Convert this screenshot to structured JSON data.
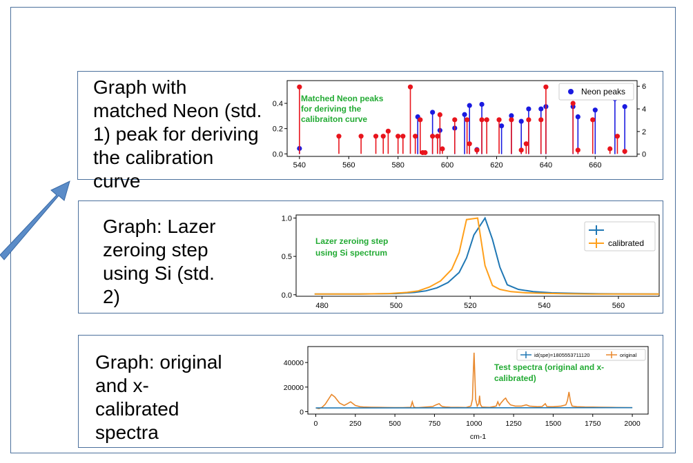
{
  "panels": [
    {
      "label": "Graph with\nmatched Neon (std.\n1) peak for deriving\nthe calibration\ncurve"
    },
    {
      "label": "Graph: Lazer\nzeroing step\nusing Si (std.\n2)"
    },
    {
      "label": "Graph: original\nand x-\ncalibrated\nspectra"
    }
  ],
  "colors": {
    "frame": "#4a6f9b",
    "arrow": "#5b8cc8",
    "annotation": "#22aa33",
    "red": "#e8141c",
    "blue": "#1a1ae0",
    "tab_blue": "#1f77b4",
    "tab_orange": "#ff9f1a",
    "tab_orange2": "#e8872a"
  },
  "chart_data": [
    {
      "type": "scatter",
      "annotation": "Matched Neon peaks\nfor deriving the\ncalibraiton curve",
      "legend": [
        "Neon peaks"
      ],
      "legend_position": "top-right",
      "xlim": [
        535,
        677
      ],
      "ylim_left": [
        -0.02,
        0.58
      ],
      "ylim_right": [
        -0.2,
        6.5
      ],
      "x_ticks": [
        540,
        560,
        580,
        600,
        620,
        640,
        660
      ],
      "y_ticks_left": [
        "0.0",
        "0.2",
        "0.4"
      ],
      "y_ticks_right": [
        "0",
        "2",
        "4",
        "6"
      ],
      "series": [
        {
          "name": "Neon peaks",
          "axis": "right",
          "color": "blue",
          "points": [
            [
              540,
              0.5
            ],
            [
              588,
              3.3
            ],
            [
              594,
              3.7
            ],
            [
              597,
              2.1
            ],
            [
              603,
              2.3
            ],
            [
              607,
              3.5
            ],
            [
              609,
              4.3
            ],
            [
              612,
              0.4
            ],
            [
              614,
              4.4
            ],
            [
              622,
              2.5
            ],
            [
              626,
              3.4
            ],
            [
              630,
              2.9
            ],
            [
              633,
              4.0
            ],
            [
              638,
              4.0
            ],
            [
              640,
              4.2
            ],
            [
              651,
              4.2
            ],
            [
              653,
              3.3
            ],
            [
              660,
              3.9
            ],
            [
              668,
              4.9
            ],
            [
              672,
              4.2
            ]
          ]
        },
        {
          "name": "",
          "axis": "left",
          "color": "red",
          "points": [
            [
              540,
              0.53
            ],
            [
              556,
              0.14
            ],
            [
              565,
              0.14
            ],
            [
              571,
              0.14
            ],
            [
              574,
              0.14
            ],
            [
              576,
              0.18
            ],
            [
              580,
              0.14
            ],
            [
              582,
              0.14
            ],
            [
              585,
              0.53
            ],
            [
              587,
              0.14
            ],
            [
              589,
              0.27
            ],
            [
              590,
              0.01
            ],
            [
              591,
              0.01
            ],
            [
              594,
              0.14
            ],
            [
              596,
              0.14
            ],
            [
              597,
              0.31
            ],
            [
              598,
              0.04
            ],
            [
              603,
              0.27
            ],
            [
              608,
              0.27
            ],
            [
              609,
              0.08
            ],
            [
              612,
              0.03
            ],
            [
              614,
              0.27
            ],
            [
              616,
              0.27
            ],
            [
              621,
              0.27
            ],
            [
              626,
              0.27
            ],
            [
              630,
              0.03
            ],
            [
              632,
              0.08
            ],
            [
              633,
              0.27
            ],
            [
              638,
              0.27
            ],
            [
              640,
              0.53
            ],
            [
              651,
              0.4
            ],
            [
              653,
              0.03
            ],
            [
              659,
              0.27
            ],
            [
              666,
              0.04
            ],
            [
              669,
              0.14
            ],
            [
              672,
              0.02
            ]
          ]
        }
      ]
    },
    {
      "type": "line",
      "annotation": "Lazer zeroing step\nusing Si spectrum",
      "legend": [
        "",
        "calibrated"
      ],
      "legend_position": "top-right",
      "xlim": [
        473,
        571
      ],
      "ylim": [
        -0.02,
        1.04
      ],
      "x_ticks": [
        480,
        500,
        520,
        540,
        560
      ],
      "y_ticks": [
        "0.0",
        "0.5",
        "1.0"
      ],
      "series": [
        {
          "name": "",
          "color": "tab_blue",
          "x": [
            478,
            490,
            500,
            505,
            508,
            511,
            514,
            517,
            519,
            521,
            524,
            526,
            528,
            530,
            533,
            537,
            542,
            548,
            555,
            571
          ],
          "y": [
            0.01,
            0.01,
            0.015,
            0.03,
            0.05,
            0.09,
            0.16,
            0.29,
            0.48,
            0.78,
            1.0,
            0.72,
            0.36,
            0.13,
            0.07,
            0.04,
            0.025,
            0.018,
            0.012,
            0.01
          ]
        },
        {
          "name": "calibrated",
          "color": "tab_orange",
          "x": [
            478,
            490,
            498,
            503,
            506,
            509,
            512,
            515,
            517,
            519,
            522,
            524,
            526,
            528,
            531,
            535,
            540,
            546,
            553,
            571
          ],
          "y": [
            0.01,
            0.01,
            0.015,
            0.03,
            0.05,
            0.1,
            0.18,
            0.33,
            0.55,
            0.98,
            1.0,
            0.38,
            0.12,
            0.07,
            0.04,
            0.025,
            0.018,
            0.012,
            0.01,
            0.01
          ]
        }
      ]
    },
    {
      "type": "line",
      "annotation": "Test spectra (original and x-\ncalibrated)",
      "legend": [
        "id(spe)=1805553711120",
        "original"
      ],
      "legend_position": "top-right",
      "xlim": [
        -50,
        2100
      ],
      "ylim": [
        -2000,
        53000
      ],
      "xlabel": "cm-1",
      "x_ticks": [
        0,
        250,
        500,
        750,
        1000,
        1250,
        1500,
        1750,
        2000
      ],
      "y_ticks": [
        "0",
        "20000",
        "40000"
      ],
      "series": [
        {
          "name": "original",
          "color": "tab_orange2",
          "x": [
            0,
            20,
            40,
            60,
            80,
            100,
            120,
            150,
            180,
            200,
            220,
            250,
            280,
            300,
            350,
            400,
            450,
            500,
            550,
            600,
            610,
            620,
            630,
            650,
            700,
            740,
            760,
            780,
            790,
            800,
            820,
            850,
            900,
            950,
            980,
            990,
            995,
            1000,
            1005,
            1010,
            1020,
            1030,
            1035,
            1040,
            1050,
            1080,
            1100,
            1140,
            1150,
            1160,
            1170,
            1190,
            1200,
            1210,
            1230,
            1260,
            1300,
            1330,
            1350,
            1400,
            1430,
            1450,
            1460,
            1480,
            1500,
            1550,
            1580,
            1590,
            1600,
            1610,
            1620,
            1650,
            1700,
            1750,
            1800,
            1850,
            1900,
            1950,
            2000
          ],
          "y": [
            3000,
            2500,
            3500,
            6000,
            10000,
            14000,
            12000,
            7000,
            5000,
            6500,
            8000,
            5000,
            4000,
            3800,
            3600,
            3500,
            3400,
            3300,
            3300,
            3500,
            8000,
            3800,
            3400,
            3300,
            3800,
            4200,
            5500,
            6500,
            5000,
            4200,
            3800,
            3600,
            3500,
            3400,
            4500,
            10000,
            30000,
            48000,
            30000,
            10000,
            4500,
            6500,
            13000,
            6000,
            3800,
            3600,
            3500,
            4500,
            8000,
            5000,
            7000,
            10000,
            11000,
            8500,
            5500,
            4500,
            4500,
            5500,
            4500,
            4000,
            4200,
            6500,
            4200,
            4000,
            4000,
            4500,
            5500,
            9000,
            16000,
            8000,
            4500,
            4000,
            3800,
            3700,
            3600,
            3500,
            3400,
            3300,
            3200
          ]
        },
        {
          "name": "id(spe)=1805553711120",
          "color": "tab_blue",
          "x": [
            0,
            2000
          ],
          "y": [
            3000,
            3200
          ]
        }
      ]
    }
  ]
}
